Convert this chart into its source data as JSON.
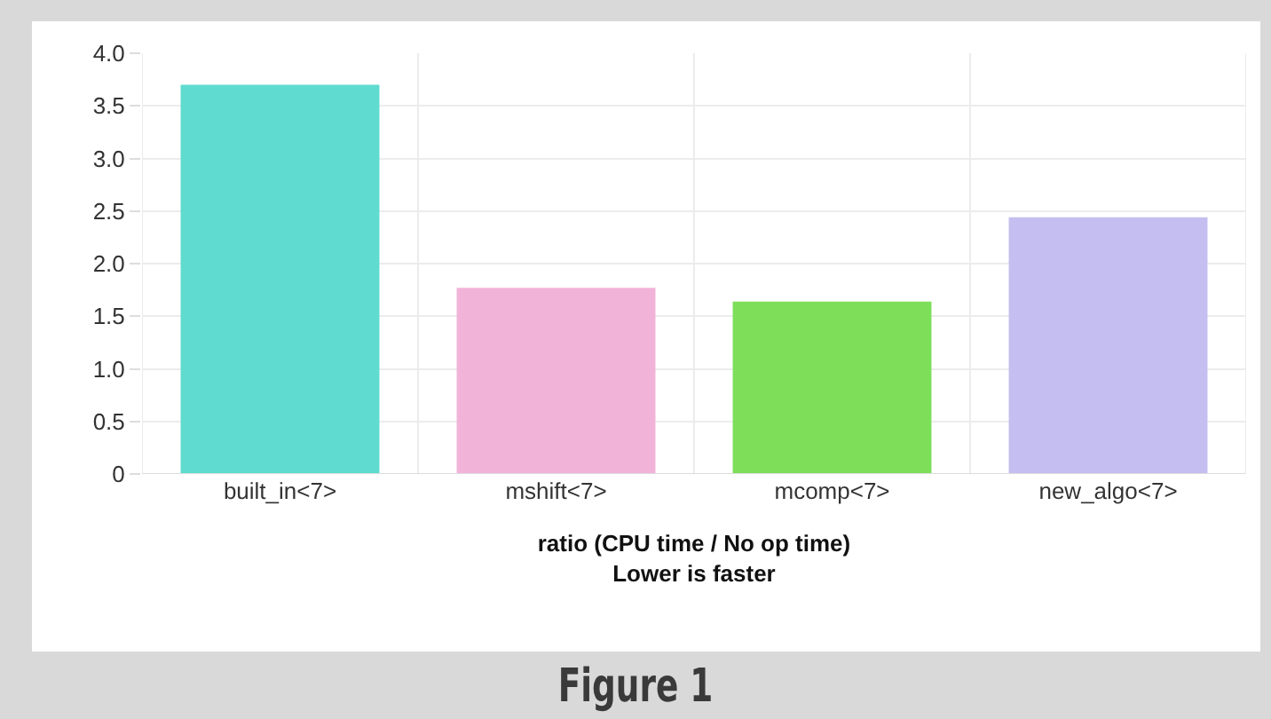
{
  "chart_data": {
    "type": "bar",
    "xlabel": "ratio (CPU time / No op time)\nLower is faster",
    "categories": [
      "built_in<7>",
      "mshift<7>",
      "mcomp<7>",
      "new_algo<7>"
    ],
    "values": [
      3.7,
      1.77,
      1.64,
      2.44
    ],
    "colors": [
      "#5fdbcf",
      "#f2b3d9",
      "#7ede5a",
      "#c4bff0"
    ],
    "ylim": [
      0,
      4
    ],
    "yticks": [
      {
        "value": 0,
        "label": "0"
      },
      0.5,
      {
        "value": 1,
        "label": "1.0"
      },
      1.5,
      {
        "value": 2,
        "label": "2.0"
      },
      2.5,
      {
        "value": 3,
        "label": "3.0"
      },
      3.5,
      {
        "value": 4,
        "label": "4.0"
      }
    ],
    "grid": true,
    "legend": false,
    "annotations": [
      "Figure 1"
    ]
  }
}
